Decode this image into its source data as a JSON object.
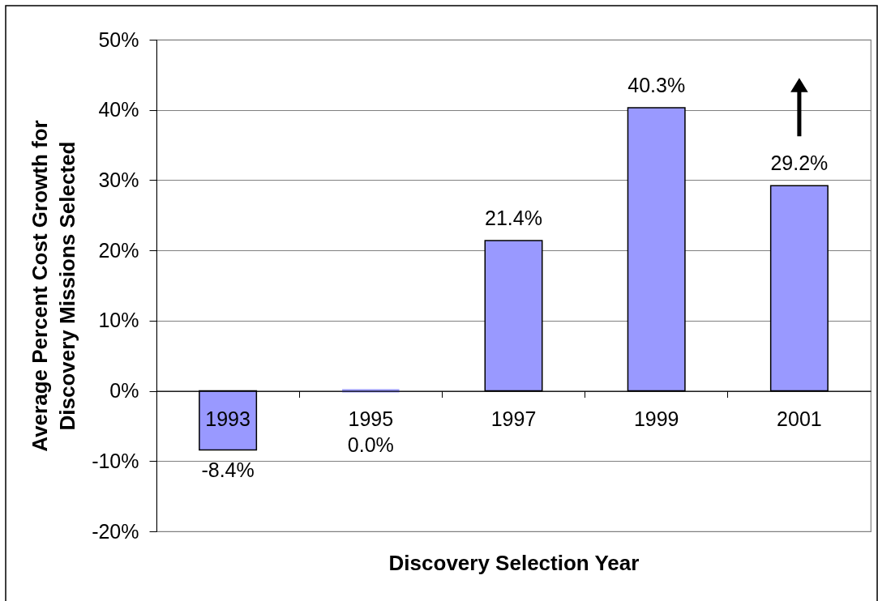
{
  "chart_data": {
    "type": "bar",
    "xlabel": "Discovery Selection Year",
    "ylabel": "Average Percent Cost Growth for\nDiscovery Missions Selected",
    "categories": [
      "1993",
      "1995",
      "1997",
      "1999",
      "2001"
    ],
    "values": [
      -8.4,
      0.0,
      21.4,
      40.3,
      29.2
    ],
    "color": "#9999ff",
    "value_labels": [
      "-8.4%",
      "0.0%",
      "21.4%",
      "40.3%",
      "29.2%"
    ],
    "ylim": [
      -20,
      50
    ],
    "yticks": [
      {
        "value": -20,
        "label": "-20%"
      },
      {
        "value": -10,
        "label": "-10%"
      },
      {
        "value": 0,
        "label": "0%"
      },
      {
        "value": 10,
        "label": "10%"
      },
      {
        "value": 20,
        "label": "20%"
      },
      {
        "value": 30,
        "label": "30%"
      },
      {
        "value": 40,
        "label": "40%"
      },
      {
        "value": 50,
        "label": "50%"
      }
    ],
    "grid": "y"
  }
}
